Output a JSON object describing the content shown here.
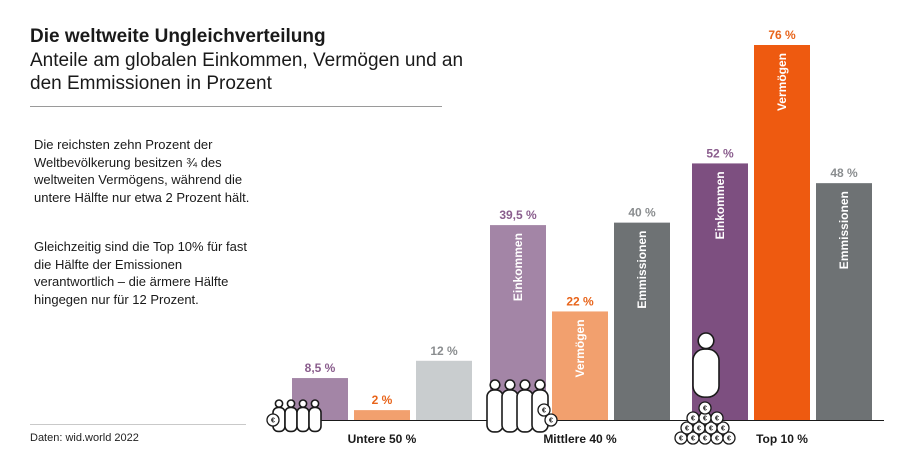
{
  "header": {
    "title": "Die weltweite Ungleichverteilung",
    "subtitle": "Anteile am globalen Einkommen, Vermögen und an den Emmissionen in Prozent"
  },
  "text": {
    "paragraph1": "Die reichsten zehn Prozent der Weltbevölkerung besitzen ¾ des weltweiten Vermögens, während die untere Hälfte nur etwa 2 Prozent hält.",
    "paragraph2": "Gleichzeitig sind die Top 10% für fast die Hälfte der Emissionen verantwortlich – die ärmere Hälfte hingegen nur für 12 Prozent."
  },
  "source": "Daten: wid.world 2022",
  "colors": {
    "einkommen": "#7d4f80",
    "einkommen_light": "#a385a6",
    "vermoegen": "#ee5a10",
    "vermoegen_light": "#f2a06e",
    "emissionen": "#6e7274",
    "emissionen_light": "#c9cdcf",
    "label_einkommen": "#8a5d8d",
    "label_vermoegen": "#e8641a",
    "label_emissionen": "#8a8d8f"
  },
  "chart_data": {
    "type": "bar",
    "categories": [
      "Untere 50 %",
      "Mittlere 40 %",
      "Top 10 %"
    ],
    "series": [
      {
        "name": "Einkommen",
        "values": [
          8.5,
          39.5,
          52
        ],
        "labels": [
          "8,5 %",
          "39,5 %",
          "52 %"
        ]
      },
      {
        "name": "Vermögen",
        "values": [
          2,
          22,
          76
        ],
        "labels": [
          "2 %",
          "22 %",
          "76 %"
        ]
      },
      {
        "name": "Emmissionen",
        "values": [
          12,
          40,
          48
        ],
        "labels": [
          "12 %",
          "40 %",
          "48 %"
        ]
      }
    ],
    "ylim": [
      0,
      76
    ],
    "grid": false,
    "icons": [
      "people-group-with-euro-coin-icon",
      "people-group-with-euro-coins-icon",
      "person-on-coin-pile-icon"
    ]
  }
}
